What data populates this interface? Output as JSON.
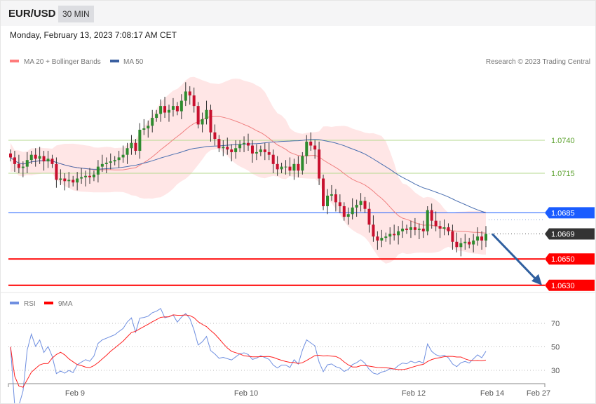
{
  "header": {
    "symbol": "EUR/USD",
    "timeframe": "30 MIN",
    "datetime": "Monday, February 13, 2023 7:08:17 AM CET"
  },
  "copyright": "Research © 2023 Trading Central",
  "legend": {
    "ma20": "MA 20 + Bollinger Bands",
    "ma50": "MA 50",
    "rsi": "RSI",
    "rsi_ma": "9MA"
  },
  "colors": {
    "up": "#2e8b2e",
    "down": "#c8102e",
    "band": "#ffe3e3",
    "ma20": "#f08080",
    "ma50": "#4a6fb0",
    "rsi": "#6f8fe0",
    "rsi_ma": "#ff2020",
    "arrow": "#2f5f9f"
  },
  "chart_data": {
    "type": "candlestick",
    "ylim": [
      1.0625,
      1.079
    ],
    "levels": [
      {
        "value": "1.0740",
        "style": "green-line"
      },
      {
        "value": "1.0715",
        "style": "green-line"
      },
      {
        "value": "1.0685",
        "style": "blue-tag",
        "color": "#1a5cff"
      },
      {
        "value": "1.0669",
        "style": "last-price-tag",
        "color": "#333333"
      },
      {
        "value": "1.0650",
        "style": "red-tag",
        "color": "#ff0000"
      },
      {
        "value": "1.0630",
        "style": "red-tag",
        "color": "#ff0000"
      }
    ],
    "forecast_arrow": {
      "from": 1.0669,
      "to": 1.063
    },
    "closes": [
      1.0727,
      1.0722,
      1.0719,
      1.072,
      1.0725,
      1.0729,
      1.0726,
      1.0728,
      1.0724,
      1.0726,
      1.0722,
      1.071,
      1.0711,
      1.0709,
      1.071,
      1.0708,
      1.0711,
      1.0712,
      1.0713,
      1.0712,
      1.0714,
      1.072,
      1.0722,
      1.0723,
      1.0724,
      1.0725,
      1.0727,
      1.0729,
      1.0734,
      1.0738,
      1.0732,
      1.0748,
      1.0749,
      1.0751,
      1.0757,
      1.076,
      1.0766,
      1.0761,
      1.0763,
      1.0766,
      1.0762,
      1.077,
      1.0777,
      1.0774,
      1.0766,
      1.0752,
      1.0756,
      1.0763,
      1.0746,
      1.0741,
      1.0734,
      1.0735,
      1.0733,
      1.0731,
      1.0734,
      1.0737,
      1.0738,
      1.0736,
      1.073,
      1.0731,
      1.0733,
      1.0731,
      1.0729,
      1.0722,
      1.0718,
      1.072,
      1.072,
      1.0717,
      1.0722,
      1.0717,
      1.0728,
      1.0739,
      1.0736,
      1.0733,
      1.0711,
      1.069,
      1.0698,
      1.0699,
      1.0693,
      1.069,
      1.0682,
      1.0684,
      1.0689,
      1.0691,
      1.0694,
      1.0688,
      1.0676,
      1.0667,
      1.0664,
      1.0666,
      1.0667,
      1.0669,
      1.0668,
      1.0671,
      1.0673,
      1.0672,
      1.0674,
      1.0672,
      1.0673,
      1.0671,
      1.0687,
      1.0679,
      1.0675,
      1.0673,
      1.0674,
      1.0671,
      1.0663,
      1.0659,
      1.0662,
      1.0663,
      1.0661,
      1.0664,
      1.0667,
      1.0664,
      1.0669
    ],
    "rsi_axis": {
      "ticks": [
        "70",
        "50",
        "30"
      ],
      "ylim": [
        20,
        80
      ]
    },
    "x_ticks": [
      "Feb 9",
      "Feb 10",
      "Feb 12",
      "Feb 14",
      "Feb 27"
    ]
  }
}
